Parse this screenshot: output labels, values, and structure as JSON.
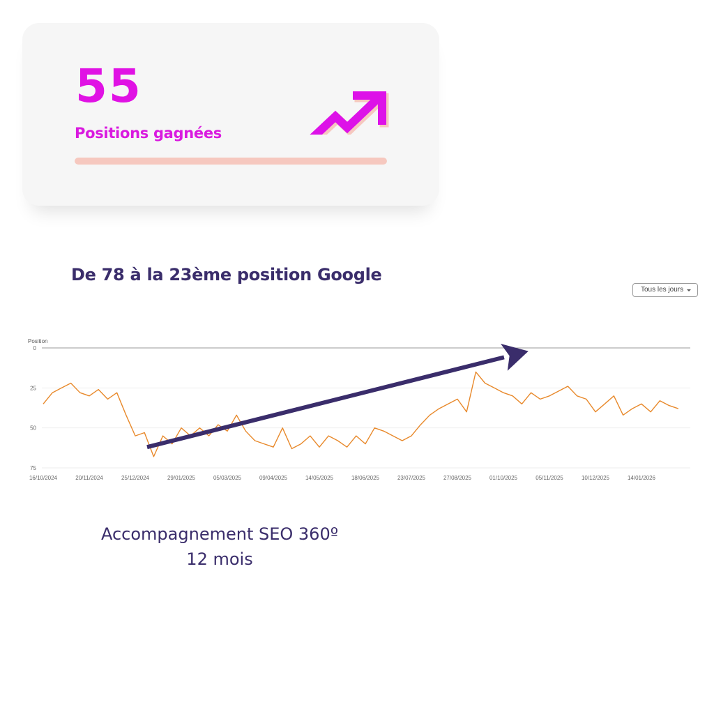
{
  "card": {
    "value": "55",
    "label": "Positions gagnées",
    "progress_percent": 100,
    "icon": "trending-up-icon",
    "accent_color": "#e012e4",
    "bar_color": "#f6c8bf"
  },
  "heading": "De 78 à la 23ème position Google",
  "dropdown": {
    "selected": "Tous les jours"
  },
  "chart_data": {
    "type": "line",
    "ylabel": "Position",
    "y_reversed": true,
    "ylim": [
      0,
      75
    ],
    "yticks": [
      "0",
      "25",
      "50",
      "75"
    ],
    "grid": true,
    "xticks": [
      "16/10/2024",
      "20/11/2024",
      "25/12/2024",
      "29/01/2025",
      "05/03/2025",
      "09/04/2025",
      "14/05/2025",
      "18/06/2025",
      "23/07/2025",
      "27/08/2025",
      "01/10/2025",
      "05/11/2025",
      "10/12/2025",
      "14/01/2026"
    ],
    "series": [
      {
        "color": "#e8892b",
        "start": "16/10/2024",
        "step_days": 7,
        "values": [
          35,
          28,
          25,
          22,
          28,
          30,
          26,
          32,
          28,
          42,
          55,
          53,
          68,
          55,
          60,
          50,
          55,
          50,
          55,
          48,
          52,
          42,
          52,
          58,
          60,
          62,
          50,
          63,
          60,
          55,
          62,
          55,
          58,
          62,
          55,
          60,
          50,
          52,
          55,
          58,
          55,
          48,
          42,
          38,
          35,
          32,
          40,
          15,
          22,
          25,
          28,
          30,
          35,
          28,
          32,
          30,
          27,
          24,
          30,
          32,
          40,
          35,
          30,
          42,
          38,
          35,
          40,
          33,
          36,
          38
        ]
      }
    ],
    "annotation_arrow": {
      "color": "#3a2d6b",
      "from": [
        "03/01/2025",
        62
      ],
      "to": [
        "20/10/2025",
        2
      ]
    }
  },
  "footer": {
    "line1": "Accompagnement SEO 360º",
    "line2": "12 mois"
  }
}
